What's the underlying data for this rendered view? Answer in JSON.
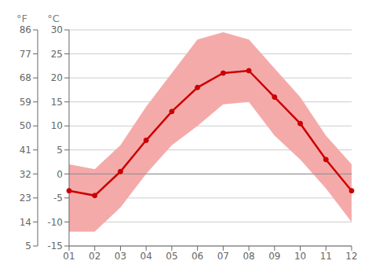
{
  "chart_data": {
    "type": "line",
    "categories": [
      "01",
      "02",
      "03",
      "04",
      "05",
      "06",
      "07",
      "08",
      "09",
      "10",
      "11",
      "12"
    ],
    "series": [
      {
        "type": "band",
        "color": "#f5aaaa",
        "low": [
          -12.0,
          -12.0,
          -7.0,
          0.0,
          6.0,
          10.0,
          14.5,
          15.0,
          8.0,
          3.0,
          -3.0,
          -10.0
        ],
        "high": [
          2.0,
          1.0,
          6.0,
          14.0,
          21.0,
          28.0,
          29.5,
          28.0,
          22.0,
          16.0,
          8.0,
          2.0
        ]
      },
      {
        "type": "line",
        "color": "#cc0000",
        "marker": "circle",
        "values": [
          -3.5,
          -4.5,
          0.5,
          7.0,
          13.0,
          18.0,
          21.0,
          21.5,
          16.0,
          10.5,
          3.0,
          -3.5
        ]
      }
    ],
    "reference_line": {
      "y": 0,
      "color": "#888888"
    },
    "ylabel": "°C",
    "ylim": [
      -15,
      30
    ],
    "yticks": [
      -15,
      -10,
      -5,
      0,
      5,
      10,
      15,
      20,
      25,
      30
    ],
    "y2label": "°F",
    "y2lim": [
      5,
      86
    ],
    "y2ticks": [
      5,
      14,
      23,
      32,
      41,
      50,
      59,
      68,
      77,
      86
    ],
    "grid": true
  }
}
